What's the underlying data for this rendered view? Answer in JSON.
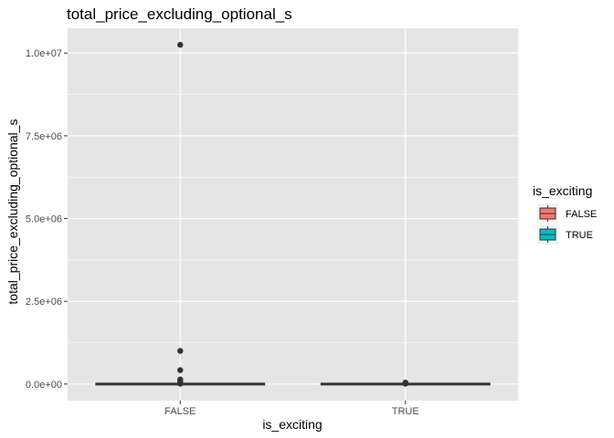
{
  "chart_data": {
    "type": "box",
    "title": "total_price_excluding_optional_s",
    "xlabel": "is_exciting",
    "ylabel": "total_price_excluding_optional_s",
    "categories": [
      "FALSE",
      "TRUE"
    ],
    "ylim": [
      -500000,
      10750000
    ],
    "yticks": [
      0,
      2500000,
      5000000,
      7500000,
      10000000
    ],
    "ytick_labels": [
      "0.0e+00",
      "2.5e+06",
      "5.0e+06",
      "7.5e+06",
      "1.0e+07"
    ],
    "grid": true,
    "legend": {
      "title": "is_exciting",
      "position": "right",
      "entries": [
        {
          "label": "FALSE",
          "color": "#F8766D"
        },
        {
          "label": "TRUE",
          "color": "#00BFC4"
        }
      ]
    },
    "series": [
      {
        "category": "FALSE",
        "fill": "#F8766D",
        "box": {
          "min": 0,
          "q1": 0,
          "median": 0,
          "q3": 0,
          "max": 0
        },
        "outliers": [
          10250000,
          1000000,
          420000,
          140000,
          90000,
          50000,
          25000,
          10000
        ]
      },
      {
        "category": "TRUE",
        "fill": "#00BFC4",
        "box": {
          "min": 0,
          "q1": 0,
          "median": 0,
          "q3": 0,
          "max": 0
        },
        "outliers": [
          45000,
          25000,
          10000
        ]
      }
    ],
    "colors": {
      "panel": "#E5E5E5",
      "grid": "#FFFFFF",
      "ink": "#333333"
    }
  }
}
